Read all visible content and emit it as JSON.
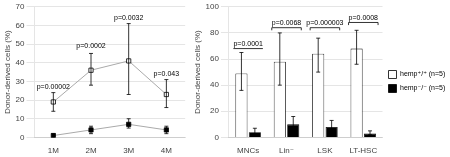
{
  "chart_data": [
    {
      "type": "line",
      "categories": [
        "1M",
        "2M",
        "3M",
        "4M"
      ],
      "color": "#aaaaaa",
      "series": [
        {
          "color": "white",
          "marker": "square",
          "values": [
            19,
            36,
            41,
            23
          ],
          "yerr_low": [
            5,
            8,
            18,
            7
          ],
          "yerr_high": [
            5,
            9,
            20,
            8
          ]
        },
        {
          "color": "black",
          "marker": "square",
          "values": [
            1,
            4,
            7,
            4
          ],
          "yerr_low": [
            1,
            2,
            2,
            2
          ],
          "yerr_high": [
            1,
            2,
            3,
            2
          ]
        }
      ],
      "annotations": [
        {
          "x": "1M",
          "y": 25,
          "text": "p=0.00002"
        },
        {
          "x": "2M",
          "y": 47,
          "text": "p=0.0002"
        },
        {
          "x": "3M",
          "y": 62,
          "text": "p=0.0032"
        },
        {
          "x": "4M",
          "y": 32,
          "text": "p=0.043"
        }
      ],
      "ylabel": "Donor-derived cells (%)",
      "ylim": [
        0,
        70
      ],
      "yticks": [
        0,
        10,
        20,
        30,
        40,
        50,
        60,
        70
      ],
      "grid": true
    },
    {
      "type": "bar",
      "categories": [
        "MNCs",
        "Lin⁻",
        "LSK",
        "LT-HSC"
      ],
      "series": [
        {
          "name": "hemp⁺/⁺ (n=5)",
          "color": "white",
          "values": [
            49,
            58,
            64,
            68
          ],
          "yerr_low": [
            13,
            18,
            14,
            12
          ],
          "yerr_high": [
            16,
            22,
            12,
            14
          ]
        },
        {
          "name": "hemp⁻/⁻ (n=5)",
          "color": "black",
          "values": [
            4,
            10,
            8,
            3
          ],
          "yerr_low": [
            2,
            4,
            3,
            1
          ],
          "yerr_high": [
            3,
            6,
            5,
            2
          ]
        }
      ],
      "brackets": [
        {
          "x": "MNCs",
          "y": 68,
          "drop": 0,
          "text": "p=0.0001"
        },
        {
          "x": "Lin⁻",
          "y": 84,
          "drop": 2,
          "text": "p=0.0068"
        },
        {
          "x": "LSK",
          "y": 84,
          "drop": 2,
          "text": "p=0.000003"
        },
        {
          "x": "LT-HSC",
          "y": 88,
          "drop": 2,
          "text": "p=0.0008"
        }
      ],
      "ylabel": "Donor-derived cells (%)",
      "ylim": [
        0,
        100
      ],
      "yticks": [
        0,
        20,
        40,
        60,
        80,
        100
      ],
      "grid": true,
      "legend": "right"
    }
  ]
}
